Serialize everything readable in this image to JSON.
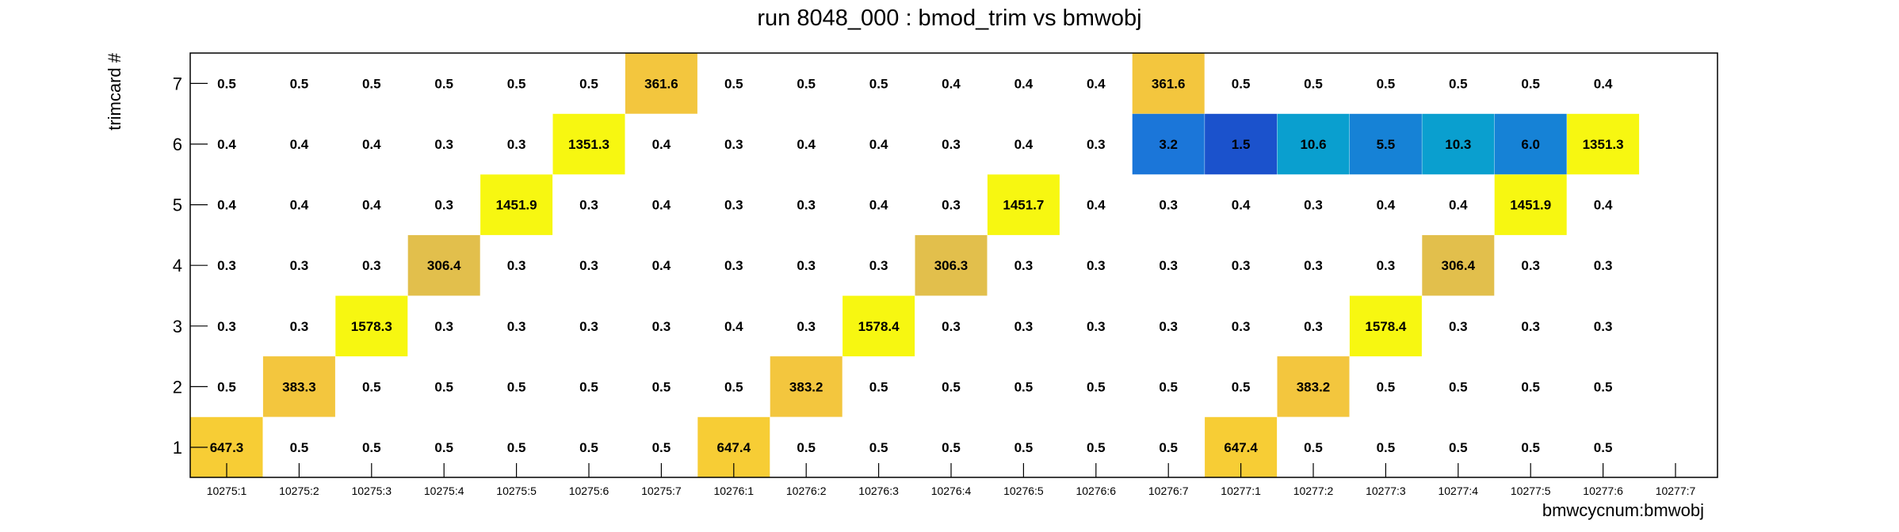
{
  "chart_data": {
    "type": "heatmap",
    "title": "run 8048_000 : bmod_trim vs bmwobj",
    "xlabel": "bmwcycnum:bmwobj",
    "ylabel": "trimcard #",
    "x_categories": [
      "10275:1",
      "10275:2",
      "10275:3",
      "10275:4",
      "10275:5",
      "10275:6",
      "10275:7",
      "10276:1",
      "10276:2",
      "10276:3",
      "10276:4",
      "10276:5",
      "10276:6",
      "10276:7",
      "10277:1",
      "10277:2",
      "10277:3",
      "10277:4",
      "10277:5",
      "10277:6",
      "10277:7"
    ],
    "y_categories": [
      "1",
      "2",
      "3",
      "4",
      "5",
      "6",
      "7"
    ],
    "rows": [
      {
        "y": "7",
        "values": [
          "0.5",
          "0.5",
          "0.5",
          "0.5",
          "0.5",
          "0.5",
          "361.6",
          "0.5",
          "0.5",
          "0.5",
          "0.4",
          "0.4",
          "0.4",
          "361.6",
          "0.5",
          "0.5",
          "0.5",
          "0.5",
          "0.5",
          "0.4",
          null
        ]
      },
      {
        "y": "6",
        "values": [
          "0.4",
          "0.4",
          "0.4",
          "0.3",
          "0.3",
          "1351.3",
          "0.4",
          "0.3",
          "0.4",
          "0.4",
          "0.3",
          "0.4",
          "0.3",
          "3.2",
          "1.5",
          "10.6",
          "5.5",
          "10.3",
          "6.0",
          "1351.3",
          null
        ]
      },
      {
        "y": "5",
        "values": [
          "0.4",
          "0.4",
          "0.4",
          "0.3",
          "1451.9",
          "0.3",
          "0.4",
          "0.3",
          "0.3",
          "0.4",
          "0.3",
          "1451.7",
          "0.4",
          "0.3",
          "0.4",
          "0.3",
          "0.4",
          "0.4",
          "1451.9",
          "0.4",
          null
        ]
      },
      {
        "y": "4",
        "values": [
          "0.3",
          "0.3",
          "0.3",
          "306.4",
          "0.3",
          "0.3",
          "0.4",
          "0.3",
          "0.3",
          "0.3",
          "306.3",
          "0.3",
          "0.3",
          "0.3",
          "0.3",
          "0.3",
          "0.3",
          "306.4",
          "0.3",
          "0.3",
          null
        ]
      },
      {
        "y": "3",
        "values": [
          "0.3",
          "0.3",
          "1578.3",
          "0.3",
          "0.3",
          "0.3",
          "0.3",
          "0.4",
          "0.3",
          "1578.4",
          "0.3",
          "0.3",
          "0.3",
          "0.3",
          "0.3",
          "0.3",
          "1578.4",
          "0.3",
          "0.3",
          "0.3",
          null
        ]
      },
      {
        "y": "2",
        "values": [
          "0.5",
          "383.3",
          "0.5",
          "0.5",
          "0.5",
          "0.5",
          "0.5",
          "0.5",
          "383.2",
          "0.5",
          "0.5",
          "0.5",
          "0.5",
          "0.5",
          "0.5",
          "383.2",
          "0.5",
          "0.5",
          "0.5",
          "0.5",
          null
        ]
      },
      {
        "y": "1",
        "values": [
          "647.3",
          "0.5",
          "0.5",
          "0.5",
          "0.5",
          "0.5",
          "0.5",
          "647.4",
          "0.5",
          "0.5",
          "0.5",
          "0.5",
          "0.5",
          "0.5",
          "647.4",
          "0.5",
          "0.5",
          "0.5",
          "0.5",
          "0.5",
          null
        ]
      }
    ],
    "cell_colors": {
      "1578": "#f7f711",
      "1451": "#f7f711",
      "1351": "#f7f711",
      "647": "#f7cd35",
      "383": "#f3c63e",
      "361": "#f3c63e",
      "306": "#e2bf4c",
      "10.6": "#0a9fcf",
      "10.3": "#0a9fcf",
      "6.0": "#1682d6",
      "5.5": "#1682d6",
      "3.2": "#1b76d9",
      "1.5": "#1b52cc"
    },
    "grid": false,
    "legend": "none"
  }
}
